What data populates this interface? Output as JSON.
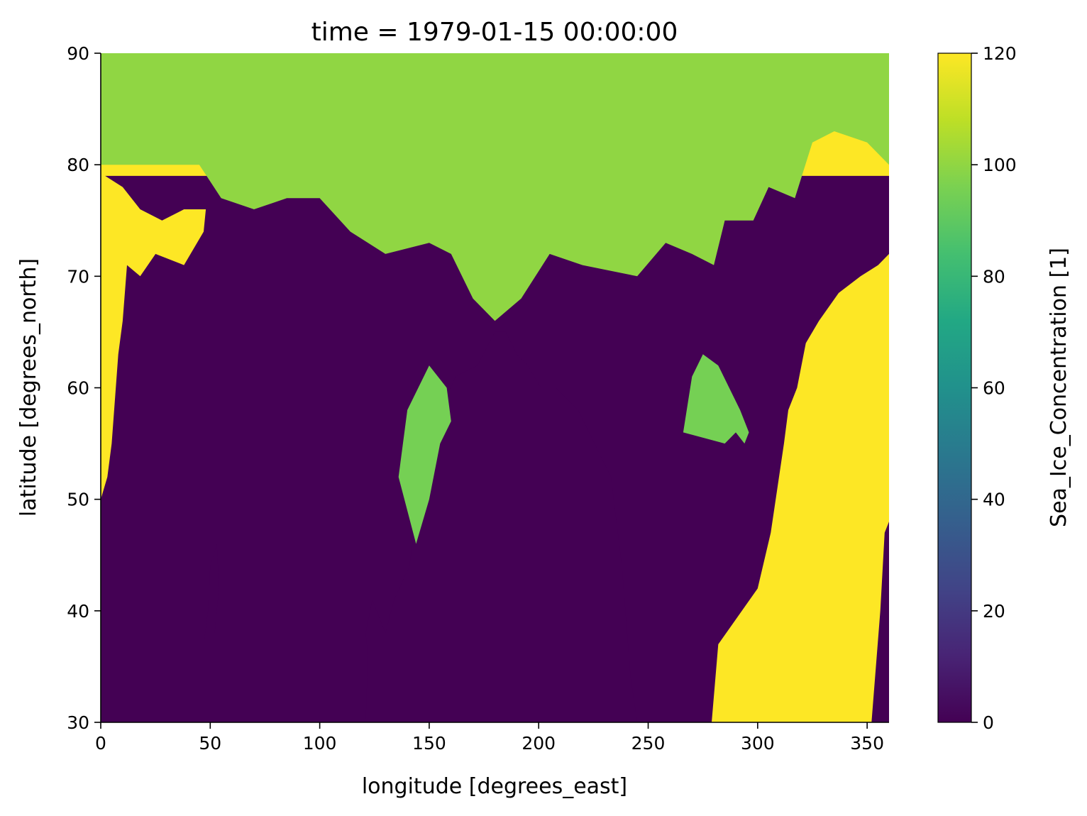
{
  "chart_data": {
    "type": "heatmap",
    "title": "time = 1979-01-15 00:00:00",
    "xlabel": "longitude [degrees_east]",
    "ylabel": "latitude [degrees_north]",
    "xlim": [
      0,
      360
    ],
    "ylim": [
      30,
      90
    ],
    "xticks": [
      0,
      50,
      100,
      150,
      200,
      250,
      300,
      350
    ],
    "yticks": [
      30,
      40,
      50,
      60,
      70,
      80,
      90
    ],
    "colorbar": {
      "label": "Sea_Ice_Concentration [1]",
      "range": [
        0,
        120
      ],
      "ticks": [
        0,
        20,
        40,
        60,
        80,
        100,
        120
      ],
      "colormap": "viridis"
    },
    "colors": {
      "land": "#fde725",
      "ice": "#8fd744",
      "open_water": "#440154"
    },
    "regions": [
      {
        "name": "open-water-north-atlantic",
        "value": 0,
        "polygon": [
          [
            0,
            30
          ],
          [
            0,
            50
          ],
          [
            3,
            52
          ],
          [
            5,
            55
          ],
          [
            8,
            63
          ],
          [
            10,
            66
          ],
          [
            12,
            71
          ],
          [
            18,
            70
          ],
          [
            25,
            72
          ],
          [
            38,
            71
          ],
          [
            47,
            74
          ],
          [
            48,
            76
          ],
          [
            38,
            76
          ],
          [
            28,
            75
          ],
          [
            18,
            76
          ],
          [
            10,
            78
          ],
          [
            2,
            79
          ],
          [
            0,
            79
          ],
          [
            360,
            79
          ],
          [
            360,
            72
          ],
          [
            355,
            71
          ],
          [
            347,
            70
          ],
          [
            337,
            68.5
          ],
          [
            328,
            66
          ],
          [
            322,
            64
          ],
          [
            318,
            60
          ],
          [
            314,
            58
          ],
          [
            312,
            55
          ],
          [
            309,
            51
          ],
          [
            306,
            47
          ],
          [
            300,
            42
          ],
          [
            282,
            37
          ],
          [
            279,
            30
          ]
        ]
      },
      {
        "name": "open-water-north-pacific",
        "value": 0,
        "polygon": [
          [
            121,
            30
          ],
          [
            122,
            36
          ],
          [
            121,
            38
          ],
          [
            124,
            41
          ],
          [
            130,
            38
          ],
          [
            134,
            41
          ],
          [
            141,
            44
          ],
          [
            143,
            47
          ],
          [
            149,
            53
          ],
          [
            155,
            58
          ],
          [
            162,
            61
          ],
          [
            172,
            62
          ],
          [
            180,
            65
          ],
          [
            185,
            65
          ],
          [
            190,
            63
          ],
          [
            195,
            62
          ],
          [
            201,
            60
          ],
          [
            208,
            60
          ],
          [
            218,
            58
          ],
          [
            228,
            54
          ],
          [
            233,
            52
          ],
          [
            238,
            44
          ],
          [
            242,
            34
          ],
          [
            245,
            30
          ]
        ]
      },
      {
        "name": "open-water-mediterranean",
        "value": 0,
        "polygon": [
          [
            352,
            30
          ],
          [
            354,
            35
          ],
          [
            356,
            40
          ],
          [
            358,
            47
          ],
          [
            360,
            48
          ],
          [
            360,
            30
          ]
        ]
      },
      {
        "name": "open-water-caspian",
        "value": 0,
        "polygon": [
          [
            47,
            37
          ],
          [
            49,
            40
          ],
          [
            50,
            44
          ],
          [
            53,
            46
          ],
          [
            54,
            42
          ],
          [
            52,
            38
          ]
        ]
      },
      {
        "name": "ice-fill-north",
        "value": 100,
        "polygon": [
          [
            0,
            90
          ],
          [
            360,
            90
          ],
          [
            360,
            80
          ],
          [
            350,
            82
          ],
          [
            335,
            83
          ],
          [
            325,
            82
          ],
          [
            317,
            77
          ],
          [
            305,
            78
          ],
          [
            298,
            75
          ],
          [
            285,
            75
          ],
          [
            280,
            71
          ],
          [
            270,
            72
          ],
          [
            258,
            73
          ],
          [
            245,
            70
          ],
          [
            220,
            71
          ],
          [
            205,
            72
          ],
          [
            192,
            68
          ],
          [
            180,
            66
          ],
          [
            170,
            68
          ],
          [
            160,
            72
          ],
          [
            150,
            73
          ],
          [
            130,
            72
          ],
          [
            114,
            74
          ],
          [
            100,
            77
          ],
          [
            85,
            77
          ],
          [
            70,
            76
          ],
          [
            55,
            77
          ],
          [
            45,
            80
          ],
          [
            20,
            80
          ],
          [
            0,
            80
          ]
        ]
      },
      {
        "name": "ice-bering-okhotsk",
        "value": 95,
        "polygon": [
          [
            136,
            52
          ],
          [
            140,
            58
          ],
          [
            150,
            62
          ],
          [
            158,
            60
          ],
          [
            160,
            57
          ],
          [
            155,
            55
          ],
          [
            150,
            50
          ],
          [
            144,
            46
          ]
        ]
      },
      {
        "name": "ice-hudson-bay",
        "value": 95,
        "polygon": [
          [
            266,
            56
          ],
          [
            270,
            61
          ],
          [
            275,
            63
          ],
          [
            282,
            62
          ],
          [
            287,
            60
          ],
          [
            292,
            58
          ],
          [
            296,
            56
          ],
          [
            294,
            55
          ],
          [
            290,
            56
          ],
          [
            285,
            55
          ]
        ]
      }
    ]
  }
}
